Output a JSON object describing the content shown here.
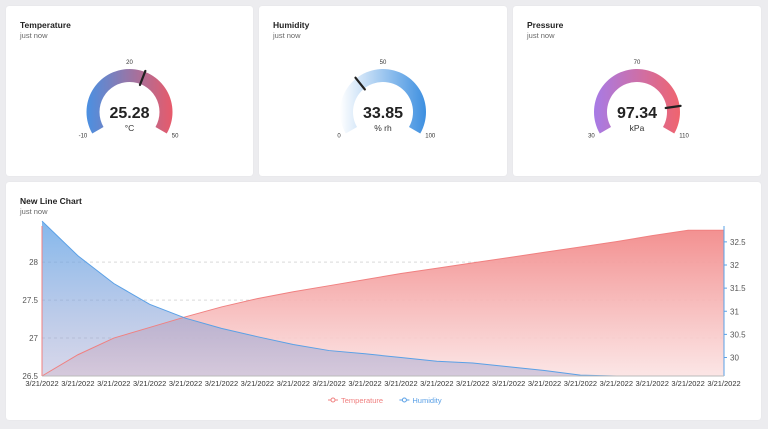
{
  "gauges": [
    {
      "title": "Temperature",
      "subtitle": "just now",
      "value": "25.28",
      "unit": "°C",
      "min": "-10",
      "max": "50",
      "mid": "20",
      "numeric": {
        "value": 25.28,
        "min": -10,
        "max": 50
      },
      "colors": [
        "#4a90e2",
        "#e85a6a"
      ]
    },
    {
      "title": "Humidity",
      "subtitle": "just now",
      "value": "33.85",
      "unit": "% rh",
      "min": "0",
      "max": "100",
      "mid": "50",
      "numeric": {
        "value": 33.85,
        "min": 0,
        "max": 100
      },
      "colors": [
        "#ffffff",
        "#3d8fe0"
      ]
    },
    {
      "title": "Pressure",
      "subtitle": "just now",
      "value": "97.34",
      "unit": "kPa",
      "min": "30",
      "max": "110",
      "mid": "70",
      "numeric": {
        "value": 97.34,
        "min": 30,
        "max": 110
      },
      "colors": [
        "#a77be6",
        "#f0646e"
      ]
    }
  ],
  "line_card": {
    "title": "New Line Chart",
    "subtitle": "just now"
  },
  "chart_data": {
    "type": "area",
    "x": [
      "3/21/2022",
      "3/21/2022",
      "3/21/2022",
      "3/21/2022",
      "3/21/2022",
      "3/21/2022",
      "3/21/2022",
      "3/21/2022",
      "3/21/2022",
      "3/21/2022",
      "3/21/2022",
      "3/21/2022",
      "3/21/2022",
      "3/21/2022",
      "3/21/2022",
      "3/21/2022",
      "3/21/2022",
      "3/21/2022",
      "3/21/2022",
      "3/21/2022"
    ],
    "left_axis": {
      "min": 26.5,
      "max": 28.45,
      "ticks": [
        26.5,
        27,
        27.5,
        28
      ]
    },
    "right_axis": {
      "min": 29.6,
      "max": 32.8,
      "ticks": [
        30,
        30.5,
        31,
        31.5,
        32,
        32.5
      ]
    },
    "grid": true,
    "legend": "bottom",
    "series": [
      {
        "name": "Temperature",
        "axis": "left",
        "color": "#f08080",
        "values": [
          26.5,
          26.78,
          27.0,
          27.14,
          27.28,
          27.41,
          27.52,
          27.61,
          27.69,
          27.77,
          27.85,
          27.92,
          27.99,
          28.06,
          28.13,
          28.2,
          28.27,
          28.35,
          28.42,
          28.42
        ]
      },
      {
        "name": "Humidity",
        "axis": "right",
        "color": "#5aa0e6",
        "values": [
          32.95,
          32.2,
          31.6,
          31.15,
          30.85,
          30.63,
          30.45,
          30.28,
          30.15,
          30.08,
          30.0,
          29.92,
          29.88,
          29.8,
          29.72,
          29.62,
          29.6,
          29.6,
          29.6,
          29.6
        ]
      }
    ]
  }
}
